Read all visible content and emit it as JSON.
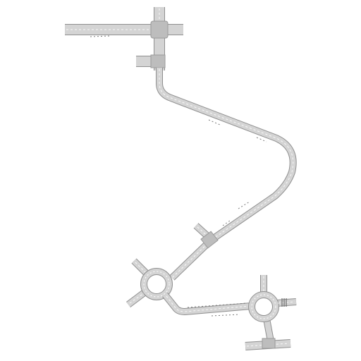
{
  "map": {
    "background": "#ffffff",
    "road_color": "#d4d4d4",
    "edge_color": "#8f8f8f",
    "lane_marking_color": "#ffffff",
    "features": [
      "road-network",
      "intersection",
      "roundabout",
      "roundabout",
      "junction-spur",
      "crosswalk"
    ]
  }
}
